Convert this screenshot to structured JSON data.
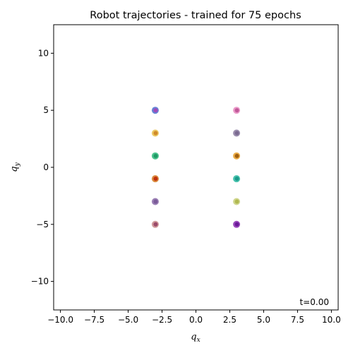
{
  "chart_data": {
    "type": "scatter",
    "title": "Robot trajectories - trained for 75 epochs",
    "xlabel": "q",
    "xlabel_sub": "x",
    "ylabel": "q",
    "ylabel_sub": "y",
    "xlim": [
      -10.5,
      10.5
    ],
    "ylim": [
      -12.5,
      12.5
    ],
    "xticks": [
      -10.0,
      -7.5,
      -5.0,
      -2.5,
      0.0,
      2.5,
      5.0,
      7.5,
      10.0
    ],
    "xtick_labels": [
      "−10.0",
      "−7.5",
      "−5.0",
      "−2.5",
      "0.0",
      "2.5",
      "5.0",
      "7.5",
      "10.0"
    ],
    "yticks": [
      -10,
      -5,
      0,
      5,
      10
    ],
    "ytick_labels": [
      "−10",
      "−5",
      "0",
      "5",
      "10"
    ],
    "grid": false,
    "annotation": "t=0.00",
    "points": [
      {
        "x": -3,
        "y": 5,
        "outer": "#4a6fcf",
        "inner": "#a04ab8"
      },
      {
        "x": -3,
        "y": 3,
        "outer": "#e8c04a",
        "inner": "#d08a2a"
      },
      {
        "x": -3,
        "y": 1,
        "outer": "#2fb87a",
        "inner": "#1e9a66"
      },
      {
        "x": -3,
        "y": -1,
        "outer": "#d4781e",
        "inner": "#c0300e"
      },
      {
        "x": -3,
        "y": -3,
        "outer": "#8a6aa8",
        "inner": "#7a5a98"
      },
      {
        "x": -3,
        "y": -5,
        "outer": "#c88a8a",
        "inner": "#9a4a6a"
      },
      {
        "x": 3,
        "y": 5,
        "outer": "#e888c0",
        "inner": "#c05898"
      },
      {
        "x": 3,
        "y": 3,
        "outer": "#8a7aa0",
        "inner": "#7a6a90"
      },
      {
        "x": 3,
        "y": 1,
        "outer": "#e8a02a",
        "inner": "#a06010"
      },
      {
        "x": 3,
        "y": -1,
        "outer": "#2ab8a0",
        "inner": "#1a9a8a"
      },
      {
        "x": 3,
        "y": -3,
        "outer": "#c8d07a",
        "inner": "#b0b850"
      },
      {
        "x": 3,
        "y": -5,
        "outer": "#8a2ab0",
        "inner": "#6a1a98"
      }
    ]
  }
}
